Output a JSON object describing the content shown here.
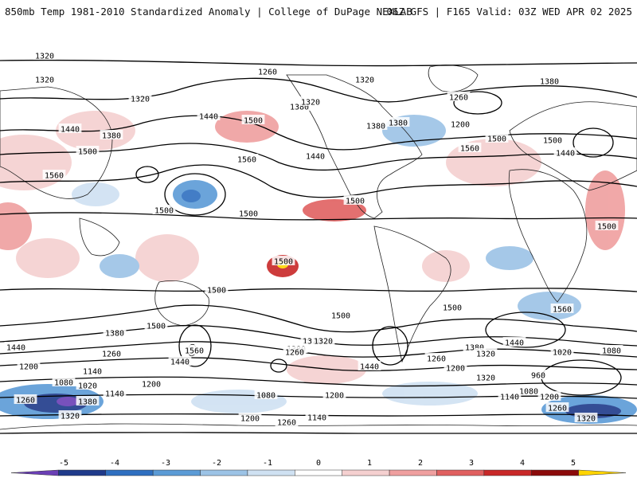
{
  "header": {
    "title": "850mb Temp 1981-2010 Standardized Anomaly | College of DuPage NEXLAB",
    "run_info": "06Z GFS | F165 Valid: 03Z WED APR 02 2025"
  },
  "map": {
    "projection": "global-cylindrical",
    "contour_labels": [
      {
        "t": "1320"
      },
      {
        "t": "1320"
      },
      {
        "t": "1260"
      },
      {
        "t": "1320"
      },
      {
        "t": "1380"
      },
      {
        "t": "1260"
      },
      {
        "t": "1320"
      },
      {
        "t": "1380"
      },
      {
        "t": "1440"
      },
      {
        "t": "1500"
      },
      {
        "t": "1380"
      },
      {
        "t": "1200"
      },
      {
        "t": "1320"
      },
      {
        "t": "1440"
      },
      {
        "t": "1380"
      },
      {
        "t": "1500"
      },
      {
        "t": "1560"
      },
      {
        "t": "1440"
      },
      {
        "t": "1500"
      },
      {
        "t": "1560"
      },
      {
        "t": "1380"
      },
      {
        "t": "1500"
      },
      {
        "t": "1440"
      },
      {
        "t": "1560"
      },
      {
        "t": "1500"
      },
      {
        "t": "1500"
      },
      {
        "t": "1500"
      },
      {
        "t": "1500"
      },
      {
        "t": "1500"
      },
      {
        "t": "1500"
      },
      {
        "t": "1500"
      },
      {
        "t": "1500"
      },
      {
        "t": "1560"
      },
      {
        "t": "1500"
      },
      {
        "t": "1380"
      },
      {
        "t": "1320"
      },
      {
        "t": "1560"
      },
      {
        "t": "1440"
      },
      {
        "t": "1260"
      },
      {
        "t": "1440"
      },
      {
        "t": "1200"
      },
      {
        "t": "1140"
      },
      {
        "t": "1080"
      },
      {
        "t": "1020"
      },
      {
        "t": "1140"
      },
      {
        "t": "1200"
      },
      {
        "t": "1260"
      },
      {
        "t": "1380"
      },
      {
        "t": "1320"
      },
      {
        "t": "1380"
      },
      {
        "t": "1260"
      },
      {
        "t": "1320"
      },
      {
        "t": "1440"
      },
      {
        "t": "1260"
      },
      {
        "t": "1200"
      },
      {
        "t": "1080"
      },
      {
        "t": "1200"
      },
      {
        "t": "1140"
      },
      {
        "t": "1200"
      },
      {
        "t": "1260"
      },
      {
        "t": "1320"
      },
      {
        "t": "1380"
      },
      {
        "t": "1440"
      },
      {
        "t": "1320"
      },
      {
        "t": "1020"
      },
      {
        "t": "1080"
      },
      {
        "t": "960"
      },
      {
        "t": "1080"
      },
      {
        "t": "1140"
      },
      {
        "t": "1200"
      },
      {
        "t": "1260"
      },
      {
        "t": "1320"
      }
    ]
  },
  "colorbar": {
    "ticks": [
      "-5",
      "-4",
      "-3",
      "-2",
      "-1",
      "0",
      "1",
      "2",
      "3",
      "4",
      "5"
    ],
    "colors": [
      "#6a3fb5",
      "#1f3a8a",
      "#2f6fc0",
      "#5b9bd6",
      "#9cc3e6",
      "#cfe1f2",
      "#ffffff",
      "#f5d0d0",
      "#ef9f9f",
      "#e06060",
      "#c82828",
      "#8b0a0a",
      "#ffd400"
    ]
  }
}
